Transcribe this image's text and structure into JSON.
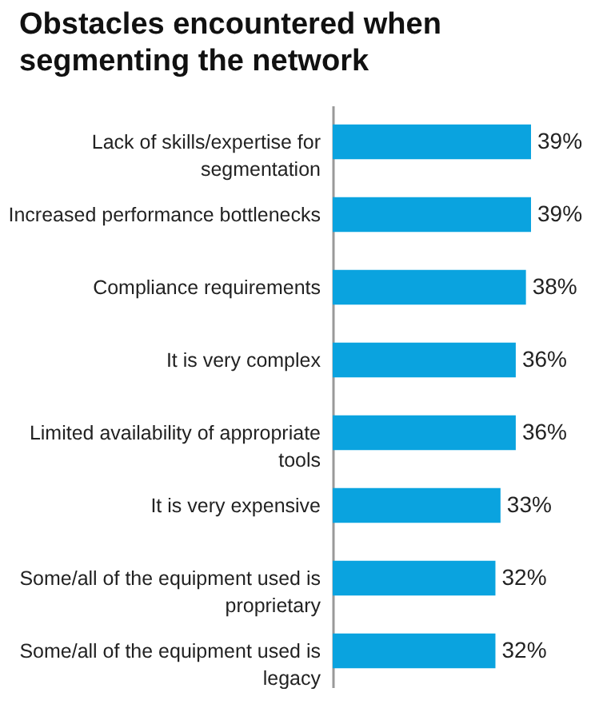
{
  "chart_data": {
    "type": "bar",
    "orientation": "horizontal",
    "title": "Obstacles encountered when segmenting the network",
    "categories": [
      "Lack of skills/expertise for segmentation",
      "Increased performance bottlenecks",
      "Compliance requirements",
      "It is very complex",
      "Limited availability of appropriate tools",
      "It is very expensive",
      "Some/all of the equipment used is proprietary",
      "Some/all of the equipment used is legacy"
    ],
    "values": [
      39,
      39,
      38,
      36,
      36,
      33,
      32,
      32
    ],
    "value_labels": [
      "39%",
      "39%",
      "38%",
      "36%",
      "36%",
      "33%",
      "32%",
      "32%"
    ],
    "color": "#0aa3df"
  }
}
